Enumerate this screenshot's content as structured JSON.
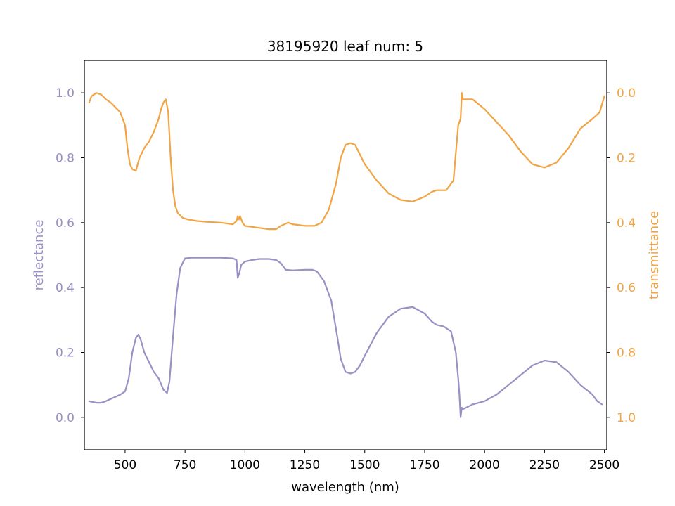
{
  "chart_data": {
    "type": "line",
    "title": "38195920 leaf num: 5",
    "xlabel": "wavelength (nm)",
    "ylabel_left": "reflectance",
    "ylabel_right": "transmittance",
    "xlim": [
      330,
      2510
    ],
    "ylim_left": [
      -0.1,
      1.1
    ],
    "ylim_right": [
      1.1,
      -0.1
    ],
    "right_axis_inverted": true,
    "grid": false,
    "x_ticks": [
      500,
      750,
      1000,
      1250,
      1500,
      1750,
      2000,
      2250,
      2500
    ],
    "x_tick_labels": [
      "500",
      "750",
      "1000",
      "1250",
      "1500",
      "1750",
      "2000",
      "2250",
      "2500"
    ],
    "y_left_ticks": [
      0.0,
      0.2,
      0.4,
      0.6,
      0.8,
      1.0
    ],
    "y_left_tick_labels": [
      "0.0",
      "0.2",
      "0.4",
      "0.6",
      "0.8",
      "1.0"
    ],
    "y_right_ticks": [
      0.0,
      0.2,
      0.4,
      0.6,
      0.8,
      1.0
    ],
    "y_right_tick_labels": [
      "0.0",
      "0.2",
      "0.4",
      "0.6",
      "0.8",
      "1.0"
    ],
    "colors": {
      "reflectance": "#9891c4",
      "transmittance": "#f0a443"
    },
    "series": [
      {
        "axis": "left",
        "color": "#9891c4",
        "x": [
          350,
          380,
          400,
          420,
          450,
          480,
          500,
          515,
          530,
          545,
          555,
          565,
          580,
          600,
          620,
          640,
          660,
          675,
          685,
          700,
          715,
          730,
          750,
          775,
          800,
          850,
          900,
          950,
          965,
          970,
          975,
          985,
          1000,
          1030,
          1060,
          1100,
          1130,
          1150,
          1170,
          1200,
          1250,
          1280,
          1300,
          1330,
          1360,
          1385,
          1400,
          1420,
          1440,
          1460,
          1480,
          1500,
          1550,
          1600,
          1650,
          1700,
          1750,
          1780,
          1800,
          1830,
          1860,
          1880,
          1890,
          1895,
          1900,
          1905,
          1910,
          1950,
          2000,
          2050,
          2100,
          2150,
          2200,
          2250,
          2300,
          2350,
          2400,
          2450,
          2470,
          2490
        ],
        "y": [
          0.05,
          0.045,
          0.045,
          0.05,
          0.06,
          0.07,
          0.08,
          0.12,
          0.2,
          0.245,
          0.255,
          0.24,
          0.2,
          0.17,
          0.14,
          0.12,
          0.085,
          0.075,
          0.11,
          0.25,
          0.38,
          0.46,
          0.49,
          0.492,
          0.492,
          0.492,
          0.492,
          0.49,
          0.485,
          0.43,
          0.44,
          0.47,
          0.48,
          0.485,
          0.488,
          0.488,
          0.485,
          0.475,
          0.455,
          0.453,
          0.455,
          0.455,
          0.45,
          0.42,
          0.36,
          0.25,
          0.18,
          0.14,
          0.135,
          0.14,
          0.16,
          0.19,
          0.26,
          0.31,
          0.335,
          0.34,
          0.32,
          0.295,
          0.285,
          0.28,
          0.265,
          0.2,
          0.12,
          0.07,
          0.0,
          0.03,
          0.025,
          0.04,
          0.05,
          0.07,
          0.1,
          0.13,
          0.16,
          0.175,
          0.17,
          0.14,
          0.1,
          0.07,
          0.05,
          0.04
        ]
      },
      {
        "axis": "right",
        "color": "#f0a443",
        "x": [
          350,
          360,
          380,
          400,
          420,
          440,
          460,
          480,
          500,
          510,
          520,
          530,
          545,
          560,
          570,
          580,
          600,
          620,
          640,
          650,
          660,
          670,
          680,
          690,
          700,
          710,
          720,
          740,
          760,
          800,
          850,
          900,
          950,
          965,
          970,
          975,
          980,
          990,
          1000,
          1050,
          1100,
          1130,
          1150,
          1180,
          1200,
          1250,
          1290,
          1320,
          1350,
          1380,
          1400,
          1420,
          1440,
          1460,
          1480,
          1500,
          1550,
          1600,
          1650,
          1700,
          1750,
          1780,
          1800,
          1840,
          1870,
          1890,
          1900,
          1905,
          1910,
          1920,
          1950,
          2000,
          2050,
          2100,
          2150,
          2200,
          2250,
          2300,
          2350,
          2400,
          2450,
          2480,
          2500
        ],
        "y": [
          0.03,
          0.01,
          0.0,
          0.005,
          0.02,
          0.03,
          0.045,
          0.06,
          0.1,
          0.17,
          0.22,
          0.235,
          0.24,
          0.2,
          0.185,
          0.17,
          0.15,
          0.12,
          0.08,
          0.05,
          0.03,
          0.02,
          0.06,
          0.2,
          0.3,
          0.35,
          0.37,
          0.385,
          0.39,
          0.395,
          0.398,
          0.4,
          0.405,
          0.395,
          0.38,
          0.39,
          0.38,
          0.4,
          0.41,
          0.415,
          0.42,
          0.42,
          0.41,
          0.4,
          0.405,
          0.41,
          0.41,
          0.4,
          0.36,
          0.28,
          0.2,
          0.16,
          0.155,
          0.16,
          0.19,
          0.22,
          0.27,
          0.31,
          0.33,
          0.335,
          0.32,
          0.305,
          0.3,
          0.3,
          0.27,
          0.1,
          0.08,
          0.0,
          0.02,
          0.02,
          0.02,
          0.05,
          0.09,
          0.13,
          0.18,
          0.22,
          0.23,
          0.215,
          0.17,
          0.11,
          0.08,
          0.06,
          0.01
        ]
      }
    ]
  }
}
